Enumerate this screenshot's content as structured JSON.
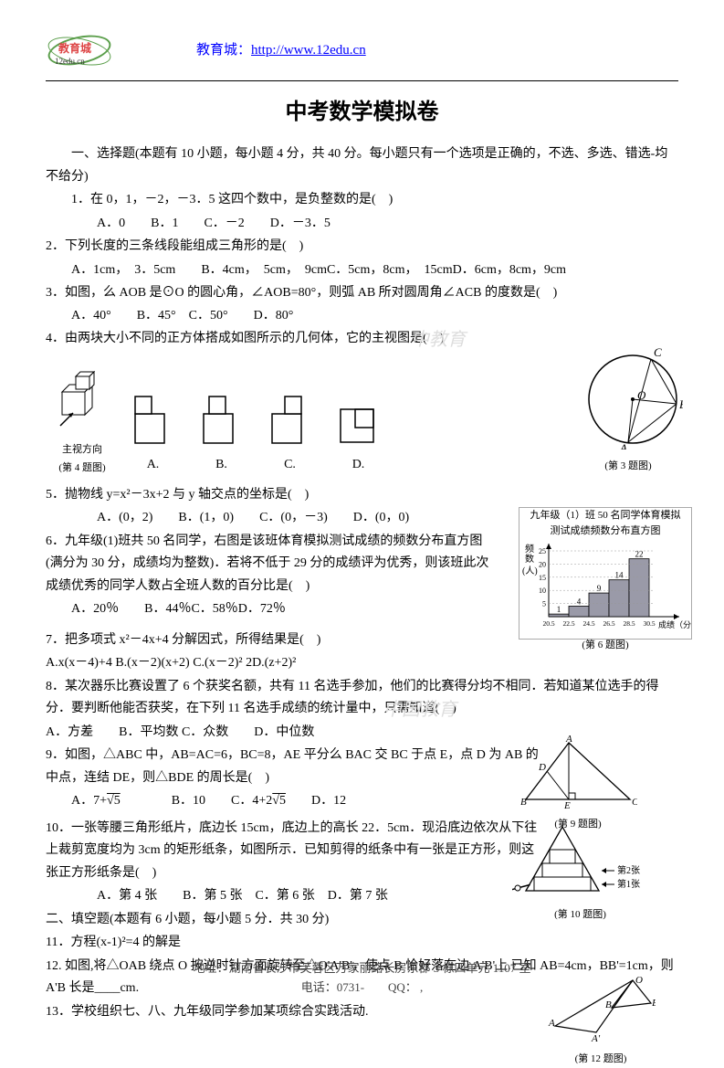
{
  "header": {
    "link_prefix": "教育城：",
    "link_url": "http://www.12edu.cn"
  },
  "title": "中考数学模拟卷",
  "section1": {
    "heading": "一、选择题(本题有 10 小题，每小题 4 分，共 40 分。每小题只有一个选项是正确的，不选、多选、错选-均不给分)",
    "q1": {
      "text": "1．在 0，1，－2，－3．5 这四个数中，是负整数的是(　)",
      "opts": "A．0　　B．1　　C．－2　　D．－3．5"
    },
    "q2": {
      "text": "2．下列长度的三条线段能组成三角形的是(　)",
      "opts": "A．1cm，　3．5cm　　B．4cm，　5cm，　9cmC．5cm，8cm，　15cmD．6cm，8cm，9cm"
    },
    "q3": {
      "text": "3．如图，么 AOB 是⊙O 的圆心角，∠AOB=80°，则弧 AB 所对圆周角∠ACB 的度数是(　)",
      "opts": "A．40°　　B．45°　C．50°　　D．80°"
    },
    "q4": {
      "text": "4．由两块大小不同的正方体搭成如图所示的几何体，它的主视图是(　)",
      "arrow_label": "主视方向",
      "caption": "(第 4 题图)",
      "opt_labels": [
        "A.",
        "B.",
        "C.",
        "D."
      ]
    },
    "q3_caption": "(第 3 题图)",
    "q5": {
      "text": "5．抛物线 y=x²－3x+2 与 y 轴交点的坐标是(　)",
      "opts": "A．(0，2)　　B．(1，0)　　C．(0，－3)　　D．(0，0)"
    },
    "q6": {
      "text": "6．九年级(1)班共 50 名同学，右图是该班体育模拟测试成绩的频数分布直方图(满分为 30 分，成绩均为整数)．若将不低于 29 分的成绩评为优秀，则该班此次成绩优秀的同学人数占全班人数的百分比是(　)",
      "opts": "A．20％　　B．44％C．58％D．72％"
    },
    "chart": {
      "title1": "九年级（1）班 50 名同学体育模拟",
      "title2": "测试成绩频数分布直方图",
      "ylabel": "频数(人)",
      "xlabel": "成绩（分)",
      "caption": "(第 6 题图)",
      "yticks": [
        5,
        10,
        15,
        20,
        25
      ],
      "xticks": [
        "20.5",
        "22.5",
        "24.5",
        "26.5",
        "28.5",
        "30.5"
      ],
      "values": [
        1,
        4,
        9,
        14,
        22
      ],
      "bar_color": "#9a9aa8",
      "grid_color": "#999999"
    },
    "q7": {
      "text": "7．把多项式 x²－4x+4 分解因式，所得结果是(　)",
      "opts": "A.x(x－4)+4 B.(x－2)(x+2) C.(x－2)² 2D.(z+2)²"
    },
    "q8": {
      "text": "8．某次器乐比赛设置了 6 个获奖名额，共有 11 名选手参加，他们的比赛得分均不相同．若知道某位选手的得分．要判断他能否获奖，在下列 11 名选手成绩的统计量中，只需知道(　)",
      "opts": "A．方差　　B．平均数 C．众数　　D．中位数"
    },
    "q9": {
      "text": "9．如图，△ABC 中，AB=AC=6，BC=8，AE 平分么 BAC 交 BC 于点 E，点 D 为 AB 的中点，连结 DE，则△BDE 的周长是(　)",
      "opts": "A．7+√5　　　　B．10　　C．4+2√5　　D．12",
      "caption": "(第 9 题图)",
      "labels": {
        "A": "A",
        "B": "B",
        "C": "C",
        "D": "D",
        "E": "E"
      }
    },
    "q10": {
      "text": "10．一张等腰三角形纸片，底边长 15cm，底边上的高长 22．5cm．现沿底边依次从下往上裁剪宽度均为 3cm 的矩形纸条，如图所示．已知剪得的纸条中有一张是正方形，则这张正方形纸条是(　)",
      "opts": "A．第 4 张　　B．第 5 张　C．第 6 张　D．第 7 张",
      "caption": "(第 10 题图)",
      "strip1": "第2张",
      "strip2": "第1张"
    }
  },
  "section2": {
    "heading": "二、填空题(本题有 6 小题，每小题 5 分．共 30 分)",
    "q11": "11．方程(x-1)²=4 的解是",
    "q12": {
      "text": "12. 如图,将△OAB 绕点 O 按逆时针方面旋转至△O'A'B'，使点 B 恰好落在边 A'B'上.已知 AB=4cm，BB'=1cm，则 A'B 长是____cm.",
      "caption": "(第 12 题图)"
    },
    "q13": "13．学校组织七、八、九年级同学参加某项综合实践活动."
  },
  "footer": {
    "address": "地址：湖南省长沙市芙蓉区万家丽路长房东郡 3 栋四单元 1107 室",
    "phone": "电话：0731-　　QQ： ,"
  },
  "colors": {
    "link": "#0000ff",
    "text": "#000000",
    "logo_green": "#5a9e4a",
    "logo_red": "#d44"
  }
}
